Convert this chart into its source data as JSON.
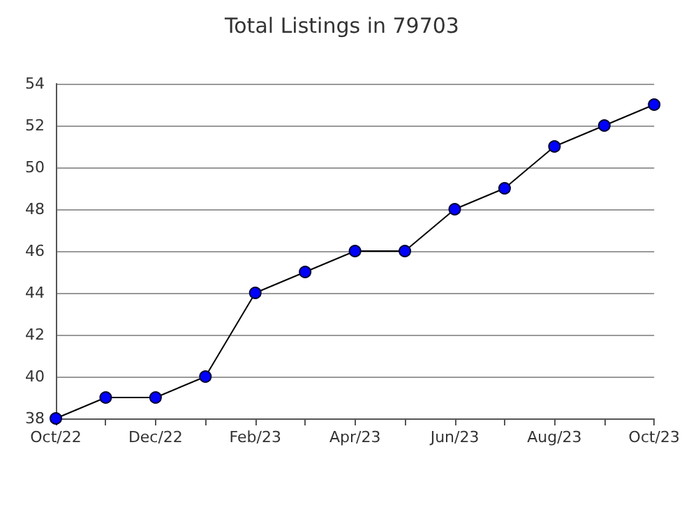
{
  "chart_data": {
    "type": "line",
    "title": "Total Listings in 79703",
    "categories": [
      "Oct/22",
      null,
      "Dec/22",
      null,
      "Feb/23",
      null,
      "Apr/23",
      null,
      "Jun/23",
      null,
      "Aug/23",
      null,
      "Oct/23"
    ],
    "series": [
      {
        "color": "#0000ff",
        "values": [
          38,
          39,
          39,
          40,
          44,
          45,
          46,
          46,
          48,
          49,
          51,
          52,
          53
        ]
      }
    ],
    "ylim": [
      38,
      54
    ],
    "yticks": [
      38,
      40,
      42,
      44,
      46,
      48,
      50,
      52,
      54
    ],
    "grid": "y",
    "marker": "circle",
    "line_style": "solid"
  }
}
